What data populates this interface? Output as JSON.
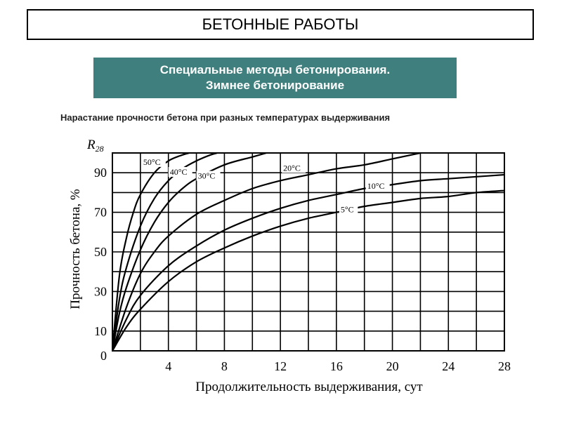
{
  "header": {
    "title": "БЕТОННЫЕ РАБОТЫ"
  },
  "subtitle": {
    "line1": "Специальные методы бетонирования.",
    "line2": "Зимнее  бетонирование"
  },
  "caption": "Нарастание прочности бетона при разных температурах выдерживания",
  "chart_data": {
    "type": "line",
    "xlabel": "Продолжительность выдерживания, сут",
    "ylabel": "Прочность бетона, %",
    "y_top_label": "R",
    "y_top_sub": "28",
    "xlim": [
      0,
      28
    ],
    "ylim": [
      0,
      100
    ],
    "x_ticks": [
      "4",
      "8",
      "12",
      "16",
      "20",
      "24",
      "28"
    ],
    "x_tick_values": [
      4,
      8,
      12,
      16,
      20,
      24,
      28
    ],
    "y_ticks": [
      "0",
      "10",
      "30",
      "50",
      "70",
      "90"
    ],
    "y_tick_values": [
      0,
      10,
      30,
      50,
      70,
      90
    ],
    "grid": true,
    "series": [
      {
        "name": "50°C",
        "x": [
          0,
          0.5,
          1,
          1.5,
          2,
          3,
          4,
          5,
          5.5
        ],
        "y": [
          0,
          38,
          57,
          70,
          79,
          90,
          96,
          99,
          100
        ]
      },
      {
        "name": "40°C",
        "x": [
          0,
          0.5,
          1,
          2,
          3,
          4,
          5,
          6,
          7,
          7.5
        ],
        "y": [
          0,
          26,
          42,
          63,
          77,
          86,
          92,
          96,
          99,
          100
        ]
      },
      {
        "name": "30°C",
        "x": [
          0,
          0.5,
          1,
          2,
          3,
          4,
          5,
          6,
          8,
          10,
          11
        ],
        "y": [
          0,
          19,
          32,
          51,
          65,
          75,
          82,
          87,
          94,
          98,
          100
        ]
      },
      {
        "name": "20°C",
        "x": [
          0,
          1,
          2,
          3,
          4,
          6,
          8,
          10,
          12,
          14,
          16,
          18,
          20,
          22
        ],
        "y": [
          0,
          22,
          39,
          50,
          58,
          69,
          76,
          82,
          86,
          89,
          92,
          94,
          97,
          100
        ]
      },
      {
        "name": "10°C",
        "x": [
          0,
          1,
          2,
          4,
          6,
          8,
          10,
          12,
          14,
          16,
          18,
          20,
          22,
          24,
          26,
          28
        ],
        "y": [
          0,
          16,
          28,
          43,
          53,
          61,
          67,
          72,
          76,
          79,
          82,
          84,
          86,
          87,
          88,
          89
        ]
      },
      {
        "name": "5°C",
        "x": [
          0,
          1,
          2,
          4,
          6,
          8,
          10,
          12,
          14,
          16,
          18,
          20,
          22,
          24,
          26,
          28
        ],
        "y": [
          0,
          12,
          21,
          35,
          45,
          52,
          58,
          63,
          67,
          70,
          73,
          75,
          77,
          78,
          80,
          81
        ]
      }
    ],
    "labels": [
      {
        "text": "50°C",
        "x": 2.2,
        "y": 94
      },
      {
        "text": "40°C",
        "x": 4.1,
        "y": 89
      },
      {
        "text": "30°C",
        "x": 6.1,
        "y": 87
      },
      {
        "text": "20°C",
        "x": 12.2,
        "y": 91
      },
      {
        "text": "10°C",
        "x": 18.2,
        "y": 82
      },
      {
        "text": "5°C",
        "x": 16.3,
        "y": 70
      }
    ]
  }
}
